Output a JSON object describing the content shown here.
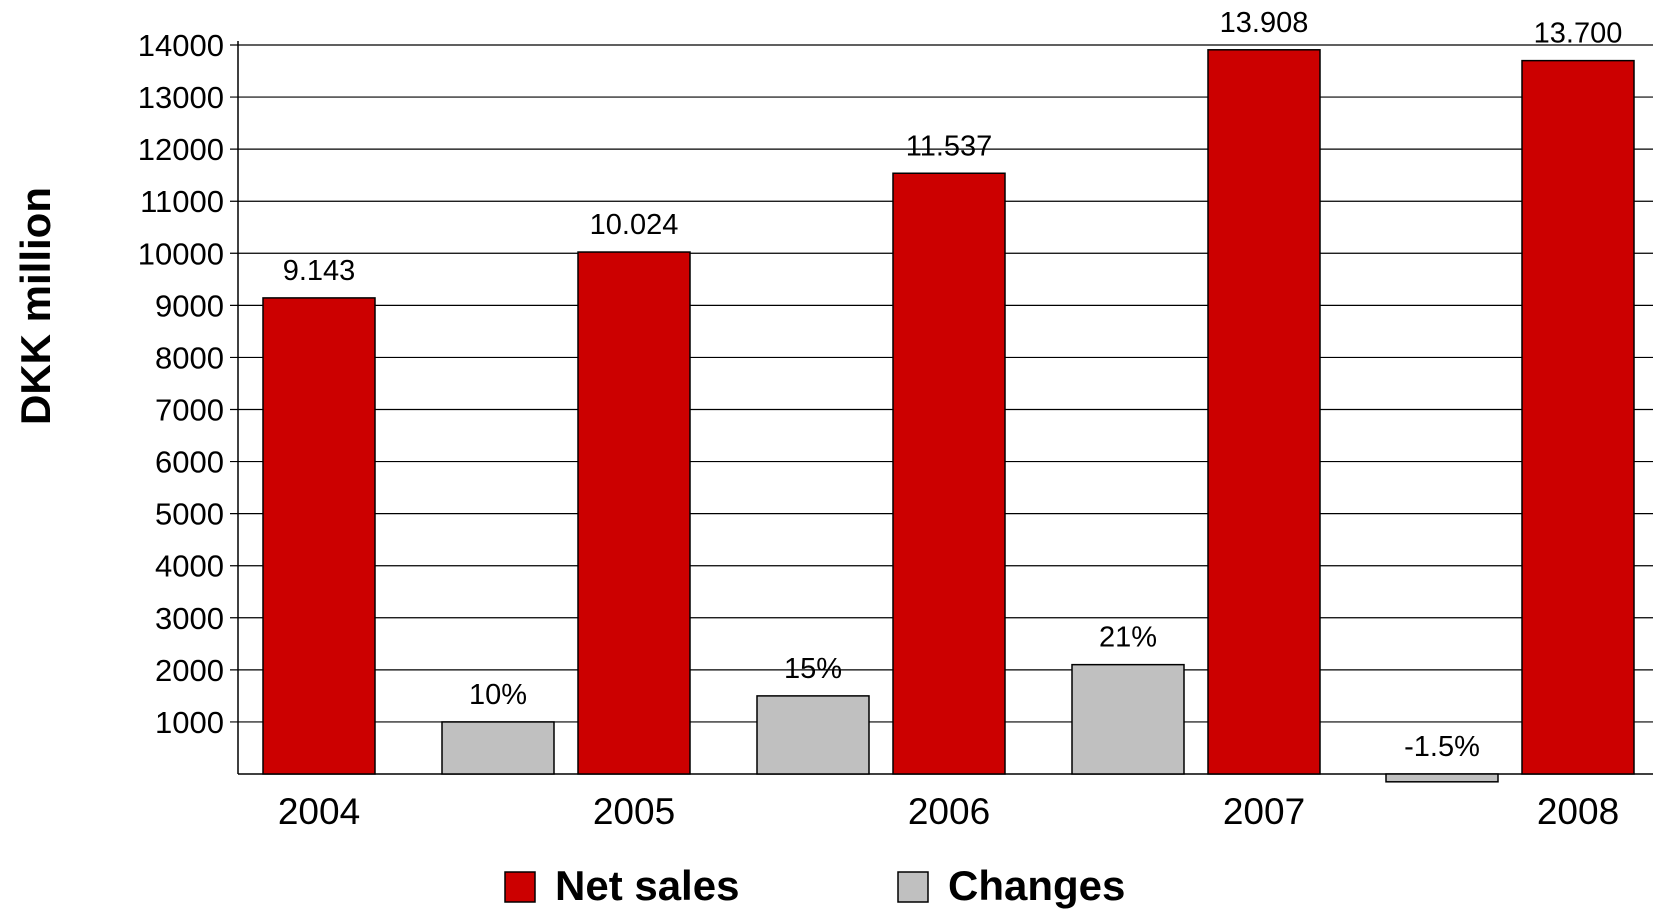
{
  "chart_data": {
    "type": "bar",
    "categories": [
      "2004",
      "2005",
      "2006",
      "2007",
      "2008"
    ],
    "ylabel": "DKK million",
    "ylim": [
      0,
      14000
    ],
    "yticks": [
      1000,
      2000,
      3000,
      4000,
      5000,
      6000,
      7000,
      8000,
      9000,
      10000,
      11000,
      12000,
      13000,
      14000
    ],
    "grid": true,
    "legend_position": "bottom",
    "colors": {
      "net_sales": "#cc0000",
      "changes": "#c0c0c0"
    },
    "net_sales": {
      "name": "Net sales",
      "values": [
        9143,
        10024,
        11537,
        13908,
        13700
      ],
      "labels": [
        "9.143",
        "10.024",
        "11.537",
        "13.908",
        "13.700"
      ]
    },
    "changes": {
      "name": "Changes",
      "between": [
        [
          "2004",
          "2005"
        ],
        [
          "2005",
          "2006"
        ],
        [
          "2006",
          "2007"
        ],
        [
          "2007",
          "2008"
        ]
      ],
      "values": [
        1000,
        1500,
        2100,
        -150
      ],
      "labels": [
        "10%",
        "15%",
        "21%",
        "-1.5%"
      ]
    }
  }
}
